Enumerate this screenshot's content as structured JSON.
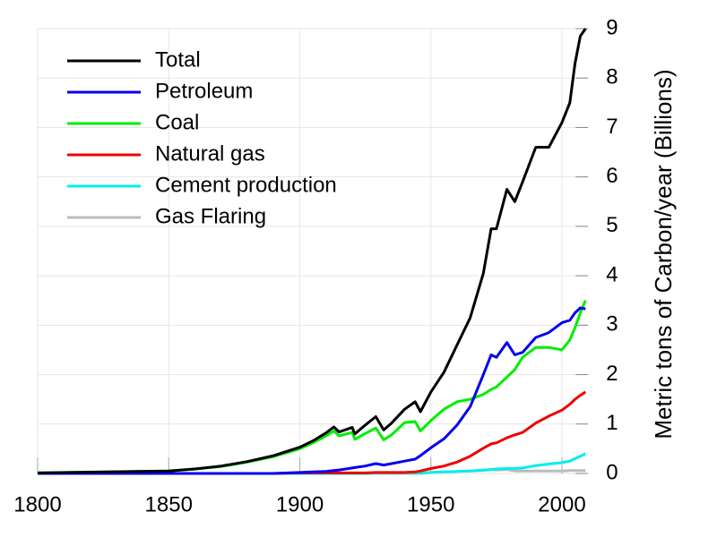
{
  "chart_data": {
    "type": "line",
    "y_label": "Metric tons of Carbon/year (Billions)",
    "x": [
      1800,
      1850,
      1860,
      1870,
      1880,
      1890,
      1900,
      1905,
      1910,
      1913,
      1915,
      1920,
      1921,
      1925,
      1929,
      1932,
      1935,
      1940,
      1944,
      1946,
      1950,
      1955,
      1960,
      1965,
      1970,
      1973,
      1975,
      1979,
      1982,
      1985,
      1990,
      1995,
      2000,
      2003,
      2005,
      2007,
      2009
    ],
    "series": [
      {
        "name": "Total",
        "color": "#000000",
        "values": [
          0.01,
          0.05,
          0.09,
          0.15,
          0.24,
          0.36,
          0.53,
          0.66,
          0.82,
          0.94,
          0.84,
          0.93,
          0.8,
          0.98,
          1.15,
          0.88,
          1.02,
          1.3,
          1.45,
          1.25,
          1.65,
          2.05,
          2.6,
          3.15,
          4.05,
          4.95,
          4.95,
          5.75,
          5.5,
          5.9,
          6.6,
          6.6,
          7.1,
          7.5,
          8.3,
          8.85,
          9.0
        ]
      },
      {
        "name": "Petroleum",
        "color": "#0000ee",
        "values": [
          0,
          0,
          0,
          0,
          0,
          0,
          0.02,
          0.03,
          0.04,
          0.06,
          0.07,
          0.11,
          0.12,
          0.15,
          0.2,
          0.17,
          0.2,
          0.25,
          0.29,
          0.36,
          0.52,
          0.7,
          0.98,
          1.35,
          2.0,
          2.4,
          2.35,
          2.65,
          2.4,
          2.45,
          2.75,
          2.85,
          3.05,
          3.1,
          3.25,
          3.35,
          3.33
        ]
      },
      {
        "name": "Coal",
        "color": "#00ee00",
        "values": [
          0.01,
          0.05,
          0.09,
          0.14,
          0.23,
          0.34,
          0.5,
          0.62,
          0.76,
          0.86,
          0.76,
          0.83,
          0.69,
          0.81,
          0.92,
          0.68,
          0.78,
          1.03,
          1.05,
          0.86,
          1.07,
          1.3,
          1.45,
          1.5,
          1.6,
          1.7,
          1.75,
          1.95,
          2.1,
          2.35,
          2.55,
          2.55,
          2.5,
          2.7,
          2.95,
          3.25,
          3.5
        ]
      },
      {
        "name": "Natural gas",
        "color": "#ee0000",
        "values": [
          0,
          0,
          0,
          0,
          0,
          0,
          0.01,
          0.01,
          0.01,
          0.01,
          0.01,
          0.01,
          0.01,
          0.01,
          0.02,
          0.02,
          0.02,
          0.02,
          0.03,
          0.05,
          0.1,
          0.15,
          0.23,
          0.35,
          0.51,
          0.6,
          0.62,
          0.72,
          0.78,
          0.83,
          1.02,
          1.16,
          1.28,
          1.4,
          1.5,
          1.58,
          1.65
        ]
      },
      {
        "name": "Cement production",
        "color": "#00eeee",
        "values": [
          0,
          0,
          0,
          0,
          0,
          0,
          0,
          0,
          0,
          0,
          0,
          0,
          0,
          0,
          0.01,
          0.01,
          0.01,
          0.01,
          0.01,
          0.01,
          0.02,
          0.03,
          0.04,
          0.05,
          0.07,
          0.08,
          0.09,
          0.1,
          0.1,
          0.11,
          0.16,
          0.19,
          0.22,
          0.25,
          0.3,
          0.35,
          0.4
        ]
      },
      {
        "name": "Gas Flaring",
        "color": "#bbbbbb",
        "values": [
          0,
          0,
          0,
          0,
          0,
          0,
          0,
          0,
          0,
          0,
          0,
          0,
          0,
          0,
          0,
          0,
          0,
          0,
          0,
          0,
          0.02,
          0.03,
          0.04,
          0.05,
          0.06,
          0.08,
          0.07,
          0.08,
          0.05,
          0.05,
          0.05,
          0.05,
          0.05,
          0.06,
          0.06,
          0.06,
          0.06
        ]
      }
    ],
    "xlim": [
      1800,
      2010
    ],
    "xticks": [
      1800,
      1850,
      1900,
      1950,
      2000
    ],
    "ylim": [
      0,
      9
    ],
    "yticks": [
      0,
      1,
      2,
      3,
      4,
      5,
      6,
      7,
      8,
      9
    ],
    "grid": true,
    "legend": "upper left"
  }
}
